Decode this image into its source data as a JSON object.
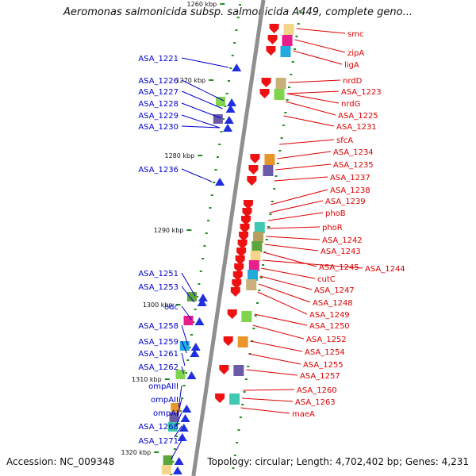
{
  "title": "Aeromonas salmonicida subsp. salmonicida A449, complete geno...",
  "accession": "Accession: NC_009348",
  "topology": "Topology: circular; Length: 4,702,402 bp; Genes: 4,231",
  "colors": {
    "left_label": "#0000cc",
    "right_label": "#dd0000",
    "axis": "#888888",
    "tick": "#228b22"
  },
  "ticks": [
    "1260 kbp",
    "1270 kbp",
    "1280 kbp",
    "1290 kbp",
    "1300 kbp",
    "1310 kbp",
    "1320 kbp"
  ],
  "left_genes": [
    "ASA_1221",
    "ASA_1226",
    "ASA_1227",
    "ASA_1228",
    "ASA_1229",
    "ASA_1230",
    "ASA_1236",
    "ASA_1251",
    "ASA_1253",
    "odc",
    "ASA_1258",
    "ASA_1259",
    "ASA_1261",
    "ASA_1262",
    "ompAIII",
    "ompAII",
    "ompAI",
    "ASA_1268",
    "ASA_1271"
  ],
  "right_genes": [
    "smc",
    "zipA",
    "ligA",
    "nrdD",
    "ASA_1223",
    "nrdG",
    "ASA_1225",
    "ASA_1231",
    "sfcA",
    "ASA_1234",
    "ASA_1235",
    "ASA_1237",
    "ASA_1238",
    "ASA_1239",
    "phoB",
    "phoR",
    "ASA_1242",
    "ASA_1243",
    "ASA_1245",
    "ASA_1244",
    "cutC",
    "ASA_1247",
    "ASA_1248",
    "ASA_1249",
    "ASA_1250",
    "ASA_1252",
    "ASA_1254",
    "ASA_1255",
    "ASA_1257",
    "ASA_1260",
    "ASA_1263",
    "maeA"
  ]
}
